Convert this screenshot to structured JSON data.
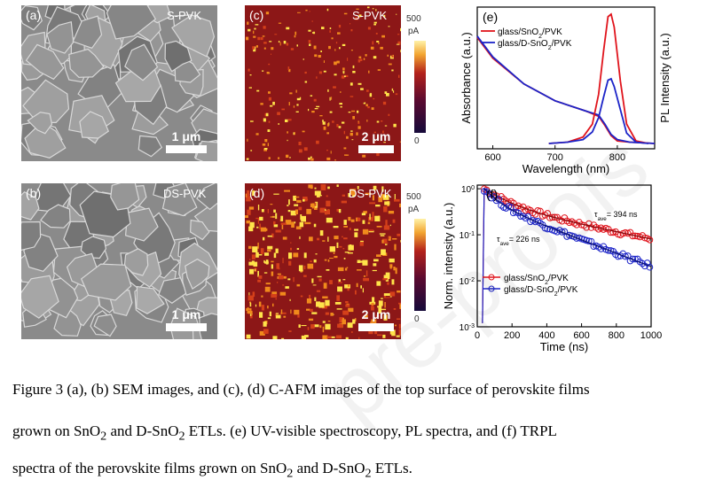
{
  "panels": {
    "a": {
      "label": "(a)",
      "title": "S-PVK",
      "scale": "1 μm"
    },
    "b": {
      "label": "(b)",
      "title": "DS-PVK",
      "scale": "1 μm"
    },
    "c": {
      "label": "(c)",
      "title": "S-PVK",
      "scale": "2 μm",
      "cb_max": "500",
      "cb_unit": "pA",
      "cb_min": "0"
    },
    "d": {
      "label": "(d)",
      "title": "DS-PVK",
      "scale": "2 μm",
      "cb_max": "500",
      "cb_unit": "pA",
      "cb_min": "0"
    }
  },
  "watermark": "pre-proofs",
  "chart_data": [
    {
      "id": "e",
      "type": "line",
      "label": "(e)",
      "xlabel": "Wavelength (nm)",
      "ylabel_left": "Absorbance (a.u.)",
      "ylabel_right": "PL Intensity (a.u.)",
      "xticks": [
        600,
        700,
        800
      ],
      "xlim": [
        575,
        860
      ],
      "colors": {
        "red": "#e0141c",
        "blue": "#1c24c8"
      },
      "legend": [
        {
          "text": "glass/SnO",
          "sub": "2",
          "tail": "/PVK",
          "color": "#e0141c"
        },
        {
          "text": "glass/D-SnO",
          "sub": "2",
          "tail": "/PVK",
          "color": "#1c24c8"
        }
      ],
      "series": [
        {
          "name": "glass/SnO2/PVK absorbance",
          "color": "#e0141c",
          "x": [
            575,
            600,
            650,
            700,
            750,
            770,
            780,
            790,
            800,
            820,
            860
          ],
          "y": [
            0.82,
            0.66,
            0.46,
            0.33,
            0.25,
            0.21,
            0.14,
            0.06,
            0.02,
            0.01,
            0.0
          ]
        },
        {
          "name": "glass/D-SnO2/PVK absorbance",
          "color": "#1c24c8",
          "x": [
            575,
            600,
            650,
            700,
            750,
            770,
            780,
            790,
            800,
            820,
            860
          ],
          "y": [
            0.83,
            0.67,
            0.46,
            0.33,
            0.25,
            0.22,
            0.15,
            0.07,
            0.03,
            0.01,
            0.0
          ]
        },
        {
          "name": "glass/SnO2/PVK PL",
          "color": "#e0141c",
          "x": [
            690,
            720,
            745,
            760,
            770,
            778,
            785,
            790,
            795,
            805,
            815,
            830,
            850
          ],
          "y": [
            0.0,
            0.01,
            0.05,
            0.15,
            0.38,
            0.72,
            0.98,
            1.0,
            0.9,
            0.48,
            0.15,
            0.02,
            0.0
          ]
        },
        {
          "name": "glass/D-SnO2/PVK PL",
          "color": "#1c24c8",
          "x": [
            690,
            720,
            745,
            760,
            770,
            778,
            785,
            790,
            795,
            805,
            815,
            830,
            850
          ],
          "y": [
            0.0,
            0.01,
            0.03,
            0.09,
            0.2,
            0.36,
            0.49,
            0.5,
            0.44,
            0.26,
            0.08,
            0.01,
            0.0
          ]
        }
      ]
    },
    {
      "id": "f",
      "type": "scatter",
      "label": "(f)",
      "xlabel": "Time (ns)",
      "ylabel": "Norm. intensity (a.u.)",
      "xticks": [
        0,
        200,
        400,
        600,
        800,
        1000
      ],
      "xlim": [
        0,
        1000
      ],
      "yscale": "log",
      "ylim": [
        0.001,
        1.2
      ],
      "yticks": [
        {
          "base": "10",
          "exp": "-3",
          "v": 0.001
        },
        {
          "base": "10",
          "exp": "-2",
          "v": 0.01
        },
        {
          "base": "10",
          "exp": "-1",
          "v": 0.1
        },
        {
          "base": "10",
          "exp": "0",
          "v": 1
        }
      ],
      "annotations": [
        {
          "text": "τ",
          "sub": "ave",
          "tail": "= 394 ns"
        },
        {
          "text": "τ",
          "sub": "ave",
          "tail": "= 226 ns"
        }
      ],
      "legend": [
        {
          "text": "glass/SnO",
          "sub": "2",
          "tail": "/PVK",
          "color": "#e0141c"
        },
        {
          "text": "glass/D-SnO",
          "sub": "2",
          "tail": "/PVK",
          "color": "#1c24c8"
        }
      ],
      "series": [
        {
          "name": "glass/SnO2/PVK",
          "color": "#e0141c",
          "tau": 394,
          "a1": 0.55,
          "t1": 120,
          "a2": 0.45,
          "t2": 560
        },
        {
          "name": "glass/D-SnO2/PVK",
          "color": "#1c24c8",
          "tau": 226,
          "a1": 0.5,
          "t1": 70,
          "a2": 0.5,
          "t2": 300
        }
      ]
    }
  ],
  "caption": {
    "line1": "Figure 3 (a), (b) SEM images, and (c), (d) C-AFM images of the top surface of perovskite films",
    "line2_a": "grown on SnO",
    "line2_sub1": "2",
    "line2_b": " and D-SnO",
    "line2_sub2": "2",
    "line2_c": " ETLs. (e) UV-visible spectroscopy, PL spectra, and (f) TRPL",
    "line3_a": "spectra of the perovskite films grown on SnO",
    "line3_sub1": "2",
    "line3_b": " and D-SnO",
    "line3_sub2": "2",
    "line3_c": " ETLs."
  }
}
